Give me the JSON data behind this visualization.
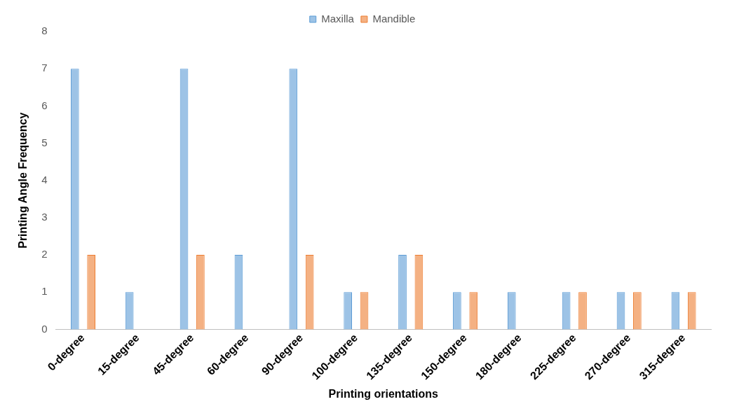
{
  "chart_data": {
    "type": "bar",
    "xlabel": "Printing orientations",
    "ylabel": "Printing Angle Frequency",
    "categories": [
      "0-degree",
      "15-degree",
      "45-degree",
      "60-degree",
      "90-degree",
      "100-degree",
      "135-degree",
      "150-degree",
      "180-degree",
      "225-degree",
      "270-degree",
      "315-degree"
    ],
    "series": [
      {
        "name": "Maxilla",
        "color": "#9dc3e6",
        "values": [
          7,
          1,
          7,
          2,
          7,
          1,
          2,
          1,
          1,
          1,
          1,
          1
        ]
      },
      {
        "name": "Mandible",
        "color": "#f4b183",
        "values": [
          2,
          0,
          2,
          0,
          2,
          1,
          2,
          1,
          0,
          1,
          1,
          1
        ]
      }
    ],
    "ylim": [
      0,
      8
    ],
    "yticks": [
      0,
      1,
      2,
      3,
      4,
      5,
      6,
      7,
      8
    ],
    "grid": false,
    "legend": "top"
  }
}
